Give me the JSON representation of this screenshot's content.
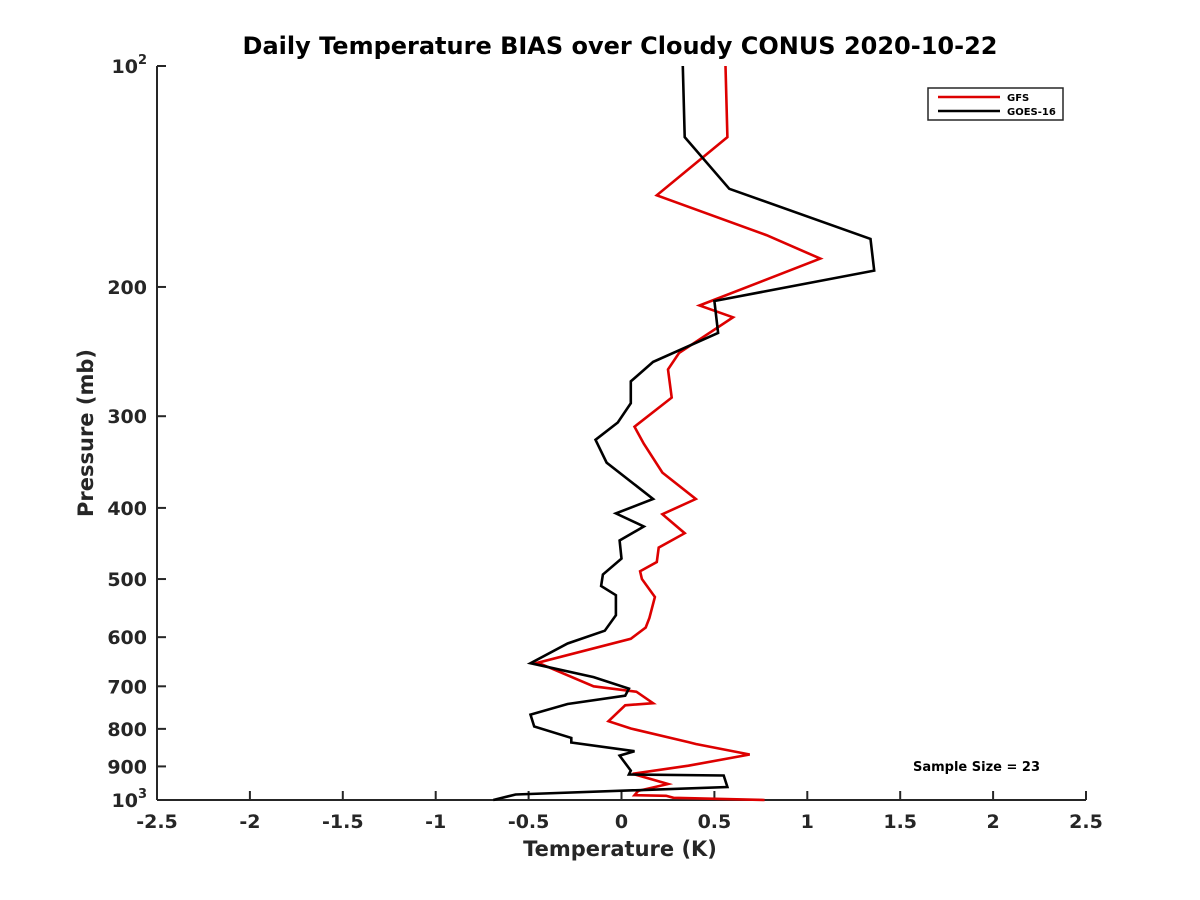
{
  "chart_data": {
    "type": "line",
    "title": "Daily Temperature BIAS over Cloudy CONUS 2020-10-22",
    "xlabel": "Temperature (K)",
    "ylabel": "Pressure (mb)",
    "xlim": [
      -2.5,
      2.5
    ],
    "ylim": [
      100,
      1000
    ],
    "y_scale": "log",
    "y_reversed": true,
    "x_ticks": [
      "-2.5",
      "-2",
      "-1.5",
      "-1",
      "-0.5",
      "0",
      "0.5",
      "1",
      "1.5",
      "2",
      "2.5"
    ],
    "y_ticks": [
      {
        "value": 100,
        "base": "10",
        "exp": "2"
      },
      {
        "value": 200,
        "label": "200"
      },
      {
        "value": 300,
        "label": "300"
      },
      {
        "value": 400,
        "label": "400"
      },
      {
        "value": 500,
        "label": "500"
      },
      {
        "value": 600,
        "label": "600"
      },
      {
        "value": 700,
        "label": "700"
      },
      {
        "value": 800,
        "label": "800"
      },
      {
        "value": 900,
        "label": "900"
      },
      {
        "value": 1000,
        "base": "10",
        "exp": "3"
      }
    ],
    "grid": false,
    "legend_position": "top-right",
    "annotation": "Sample Size = 23",
    "series": [
      {
        "name": "GFS",
        "color": "#dd0000",
        "x": [
          0.56,
          0.57,
          0.19,
          0.78,
          1.07,
          0.42,
          0.6,
          0.31,
          0.25,
          0.27,
          0.07,
          0.12,
          0.22,
          0.4,
          0.22,
          0.34,
          0.2,
          0.19,
          0.1,
          0.11,
          0.18,
          0.15,
          0.13,
          0.05,
          -0.45,
          -0.15,
          0.08,
          0.17,
          0.02,
          -0.07,
          0.05,
          0.36,
          0.4,
          0.69,
          0.36,
          0.06,
          0.25,
          0.09,
          0.07,
          0.24,
          0.28,
          0.77
        ],
        "y": [
          100,
          125,
          150,
          170,
          183,
          212,
          220,
          246,
          259,
          283,
          310,
          327,
          358,
          389,
          408,
          433,
          453,
          474,
          488,
          500,
          529,
          565,
          582,
          603,
          650,
          700,
          712,
          738,
          743,
          781,
          799,
          834,
          839,
          867,
          898,
          921,
          951,
          972,
          985,
          987,
          993,
          1000
        ]
      },
      {
        "name": "GOES-16",
        "color": "#000000",
        "x": [
          0.33,
          0.34,
          0.58,
          1.34,
          1.36,
          0.5,
          0.52,
          0.17,
          0.05,
          0.05,
          -0.02,
          -0.14,
          -0.08,
          0.17,
          -0.03,
          0.12,
          -0.01,
          0.0,
          -0.1,
          -0.11,
          -0.03,
          -0.03,
          -0.09,
          -0.29,
          -0.49,
          -0.15,
          0.04,
          0.02,
          -0.29,
          -0.49,
          -0.47,
          -0.27,
          -0.27,
          0.07,
          -0.01,
          0.05,
          0.04,
          0.55,
          0.57,
          -0.57,
          -0.69
        ],
        "y": [
          100,
          125,
          147,
          172,
          190,
          209,
          231,
          253,
          269,
          288,
          306,
          323,
          347,
          389,
          407,
          424,
          443,
          469,
          493,
          511,
          526,
          560,
          588,
          612,
          651,
          680,
          705,
          721,
          740,
          765,
          794,
          823,
          835,
          858,
          870,
          912,
          923,
          926,
          960,
          983,
          1000
        ]
      }
    ]
  }
}
